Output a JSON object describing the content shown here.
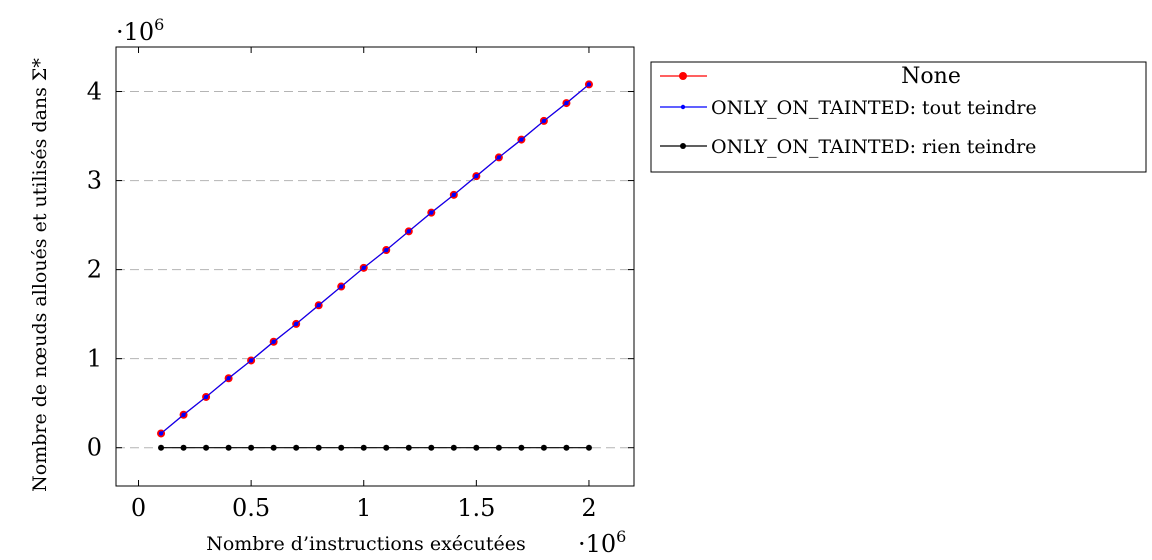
{
  "chart_data": {
    "type": "line",
    "title": "",
    "xlabel": "Nombre d’instructions exécutées",
    "ylabel": "Nombre de nœuds alloués et utilisés dans Σ*",
    "x_multiplier": "·10",
    "x_multiplier_exp": "6",
    "y_multiplier": "·10",
    "y_multiplier_exp": "6",
    "xlim": [
      -0.1,
      2.2
    ],
    "ylim": [
      -0.43,
      4.5
    ],
    "x_ticks": [
      0,
      0.5,
      1,
      1.5,
      2
    ],
    "x_tick_labels": [
      "0",
      "0.5",
      "1",
      "1.5",
      "2"
    ],
    "y_ticks": [
      0,
      1,
      2,
      3,
      4
    ],
    "y_tick_labels": [
      "0",
      "1",
      "2",
      "3",
      "4"
    ],
    "grid": "horizontal-dashed",
    "legend_position": "outside-right-top",
    "x": [
      0.1,
      0.2,
      0.3,
      0.4,
      0.5,
      0.6,
      0.7,
      0.8,
      0.9,
      1.0,
      1.1,
      1.2,
      1.3,
      1.4,
      1.5,
      1.6,
      1.7,
      1.8,
      1.9,
      2.0
    ],
    "series": [
      {
        "name": "None",
        "color": "#ff0000",
        "marker_radius": 4,
        "values": [
          0.16,
          0.37,
          0.57,
          0.78,
          0.98,
          1.19,
          1.39,
          1.6,
          1.81,
          2.02,
          2.22,
          2.43,
          2.64,
          2.84,
          3.05,
          3.26,
          3.46,
          3.67,
          3.87,
          4.08
        ]
      },
      {
        "name": "ONLY_ON_TAINTED: tout teindre",
        "color": "#0000ff",
        "marker_radius": 2.2,
        "values": [
          0.16,
          0.37,
          0.57,
          0.78,
          0.98,
          1.19,
          1.39,
          1.6,
          1.81,
          2.02,
          2.22,
          2.43,
          2.64,
          2.84,
          3.05,
          3.26,
          3.46,
          3.67,
          3.87,
          4.08
        ]
      },
      {
        "name": "ONLY_ON_TAINTED: rien teindre",
        "color": "#000000",
        "marker_radius": 3,
        "values": [
          0,
          0,
          0,
          0,
          0,
          0,
          0,
          0,
          0,
          0,
          0,
          0,
          0,
          0,
          0,
          0,
          0,
          0,
          0,
          0
        ]
      }
    ]
  }
}
